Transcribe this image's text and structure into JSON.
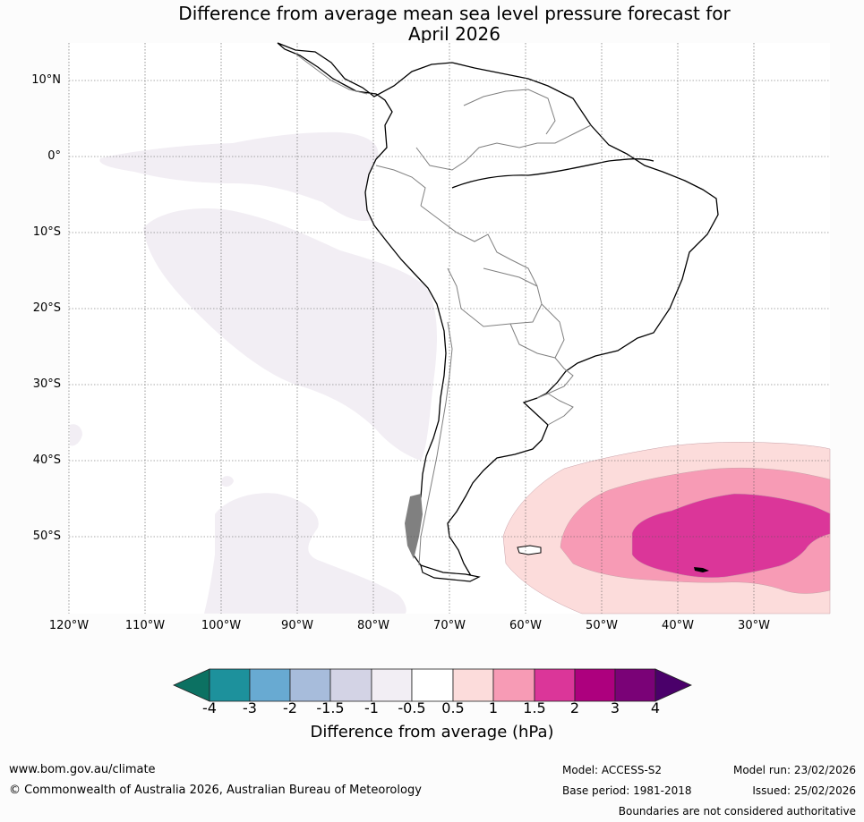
{
  "title": {
    "line1": "Difference from average mean sea level pressure forecast for",
    "line2": "April 2026"
  },
  "map": {
    "lat_labels": [
      "10°N",
      "0°",
      "10°S",
      "20°S",
      "30°S",
      "40°S",
      "50°S"
    ],
    "lon_labels": [
      "120°W",
      "110°W",
      "100°W",
      "90°W",
      "80°W",
      "70°W",
      "60°W",
      "50°W",
      "40°W",
      "30°W"
    ],
    "colors": {
      "ocean": "#ffffff",
      "land_outline": "#000000",
      "borders": "#808080",
      "neg_0_5_to_1": "#f2eef4",
      "pos_0_5_to_1": "#fcdcdb",
      "pos_1_to_1_5": "#f79bb5",
      "pos_1_5_to_2": "#db3699"
    }
  },
  "colorbar": {
    "ticks": [
      "-4",
      "-3",
      "-2",
      "-1.5",
      "-1",
      "-0.5",
      "0.5",
      "1",
      "1.5",
      "2",
      "3",
      "4"
    ],
    "colors": [
      "#0c7162",
      "#1d919c",
      "#68aad2",
      "#a7bcdb",
      "#d3d3e5",
      "#f2eef4",
      "#ffffff",
      "#fcdcdb",
      "#f79bb5",
      "#db3699",
      "#ad007e",
      "#7a0277",
      "#4a006a"
    ],
    "label": "Difference from average (hPa)"
  },
  "footer": {
    "website": "www.bom.gov.au/climate",
    "copyright": "© Commonwealth of Australia 2026, Australian Bureau of Meteorology",
    "model": "Model: ACCESS-S2",
    "base_period": "Base period: 1981-2018",
    "model_run": "Model run: 23/02/2026",
    "issued": "Issued: 25/02/2026",
    "disclaimer": "Boundaries are not considered authoritative"
  }
}
